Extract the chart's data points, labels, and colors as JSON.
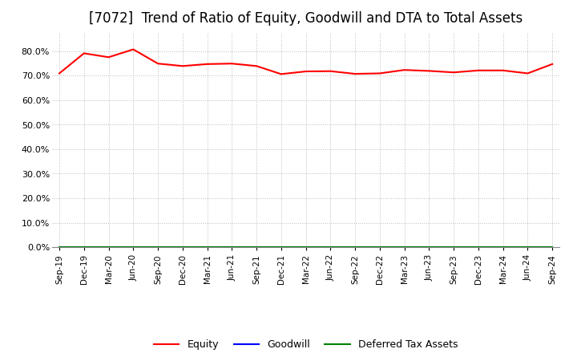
{
  "title": "[7072]  Trend of Ratio of Equity, Goodwill and DTA to Total Assets",
  "x_labels": [
    "Sep-19",
    "Dec-19",
    "Mar-20",
    "Jun-20",
    "Sep-20",
    "Dec-20",
    "Mar-21",
    "Jun-21",
    "Sep-21",
    "Dec-21",
    "Mar-22",
    "Jun-22",
    "Sep-22",
    "Dec-22",
    "Mar-23",
    "Jun-23",
    "Sep-23",
    "Dec-23",
    "Mar-24",
    "Jun-24",
    "Sep-24"
  ],
  "equity": [
    0.71,
    0.792,
    0.776,
    0.808,
    0.75,
    0.74,
    0.748,
    0.75,
    0.74,
    0.707,
    0.718,
    0.719,
    0.708,
    0.71,
    0.724,
    0.72,
    0.714,
    0.722,
    0.722,
    0.71,
    0.748
  ],
  "goodwill": [
    0.0,
    0.0,
    0.0,
    0.0,
    0.0,
    0.0,
    0.0,
    0.0,
    0.0,
    0.0,
    0.0,
    0.0,
    0.0,
    0.0,
    0.0,
    0.0,
    0.0,
    0.0,
    0.0,
    0.0,
    0.0
  ],
  "dta": [
    0.0,
    0.0,
    0.0,
    0.0,
    0.0,
    0.0,
    0.0,
    0.0,
    0.0,
    0.0,
    0.0,
    0.0,
    0.0,
    0.0,
    0.0,
    0.0,
    0.0,
    0.0,
    0.0,
    0.0,
    0.0
  ],
  "equity_color": "#ff0000",
  "goodwill_color": "#0000ff",
  "dta_color": "#008000",
  "ylim_min": 0.0,
  "ylim_max": 0.88,
  "yticks": [
    0.0,
    0.1,
    0.2,
    0.3,
    0.4,
    0.5,
    0.6,
    0.7,
    0.8
  ],
  "background_color": "#ffffff",
  "grid_color": "#bbbbbb",
  "title_fontsize": 12,
  "title_fontweight": "normal",
  "legend_labels": [
    "Equity",
    "Goodwill",
    "Deferred Tax Assets"
  ]
}
